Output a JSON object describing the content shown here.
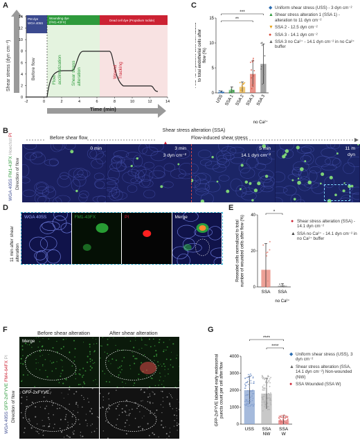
{
  "panels": {
    "A": "A",
    "B": "B",
    "C": "C",
    "D": "D",
    "E": "E",
    "F": "F",
    "G": "G"
  },
  "panelA": {
    "ylabel": "Shear stress (dyn cm⁻²)",
    "xlabel": "Time (min)",
    "band_pm": "PM dye\nWGA 405S",
    "band_wound": "Wounding dye\n(FM1-43FX)",
    "band_dead": "Dead cell dye (Propidium Iodide)",
    "phase_before": "Before flow",
    "phase_accl": "Flow acclimatization",
    "phase_ssa": "Shear stress alteration",
    "phase_wound": "Wound Tracking",
    "yticks": [
      "0",
      "2",
      "4",
      "6",
      "8",
      "10",
      "12",
      "14"
    ],
    "xticks": [
      "-2",
      "0",
      "2",
      "4",
      "6",
      "8",
      "10",
      "12",
      "14"
    ],
    "colors": {
      "pm": "#3b4a8f",
      "wound": "#2e9a3c",
      "dead": "#cc2233"
    }
  },
  "chart_data": [
    {
      "id": "C",
      "type": "bar",
      "ylabel": "FM1-43FX positive cells normalized to total endothelial cells after flow (%)",
      "ylim": [
        0,
        15
      ],
      "yticks": [
        "0",
        "5",
        "10",
        "15"
      ],
      "categories": [
        "USS",
        "SSA 1",
        "SSA 2",
        "SSA 3",
        "SSA 3"
      ],
      "sublabel": "no Ca²⁺",
      "values": [
        0.2,
        0.6,
        1.2,
        3.8,
        5.8
      ],
      "errors": [
        0.2,
        0.6,
        1.0,
        2.6,
        4.0
      ],
      "colors": [
        "#2b6cb0",
        "#2e9a3c",
        "#e6a21a",
        "#d94a3a",
        "#666666"
      ],
      "significance": [
        {
          "from": 0,
          "to": 3,
          "label": "**"
        },
        {
          "from": 0,
          "to": 4,
          "label": "***"
        }
      ],
      "legend": [
        {
          "symbol": "◆",
          "label": "Uniform shear stress (USS) - 3 dyn cm⁻²"
        },
        {
          "symbol": "▲",
          "label": "Shear stress alteration 1 (SSA 1) - alteration to 11 dyn cm⁻²"
        },
        {
          "symbol": "▼",
          "label": "SSA 2 - 12.5 dyn cm⁻²"
        },
        {
          "symbol": "●",
          "label": "SSA 3 - 14.1 dyn cm⁻²"
        },
        {
          "symbol": "▲",
          "label": "SSA 3 no Ca²⁺ - 14.1 dyn cm⁻² in no Ca²⁺ buffer"
        }
      ]
    },
    {
      "id": "E",
      "type": "bar",
      "ylabel": "Resealed cells normalized to total number of wounded cells after flow (%)",
      "ylim": [
        0,
        40
      ],
      "yticks": [
        "0",
        "20",
        "40"
      ],
      "categories": [
        "SSA",
        "SSA"
      ],
      "sublabel": "no Ca²⁺",
      "values": [
        9.5,
        0.6
      ],
      "errors": [
        14.5,
        1.2
      ],
      "colors": [
        "#e8897d",
        "#888888"
      ],
      "significance": [
        {
          "from": 0,
          "to": 1,
          "label": "*"
        }
      ],
      "legend": [
        {
          "symbol": "●",
          "label": "Shear stress alteration (SSA) - 14.1 dyn cm⁻²"
        },
        {
          "symbol": "▲",
          "label": "SSA no Ca²⁺ - 14.1 dyn cm⁻² in no Ca²⁺ buffer"
        }
      ]
    },
    {
      "id": "G",
      "type": "bar",
      "ylabel": "GFP-2xFYVE labelled early endosomal puncta count per cell after flow",
      "ylim": [
        0,
        4000
      ],
      "yticks": [
        "0",
        "1000",
        "2000",
        "3000",
        "4000"
      ],
      "categories": [
        "USS",
        "SSA NW",
        "SSA W"
      ],
      "values": [
        2000,
        1800,
        230
      ],
      "errors": [
        800,
        900,
        260
      ],
      "colors": [
        "#7f9ccd",
        "#b0b0b0",
        "#e27b7b"
      ],
      "significance": [
        {
          "from": 0,
          "to": 2,
          "label": "****"
        },
        {
          "from": 1,
          "to": 2,
          "label": "****"
        }
      ],
      "legend": [
        {
          "symbol": "◆",
          "label": "Uniform shear stress (USS), 3 dyn cm⁻²"
        },
        {
          "symbol": "▲",
          "label": "Shear stress alteration (SSA, 14.1 dyn cm⁻²) Non-wounded (NW)"
        },
        {
          "symbol": "●",
          "label": "SSA Wounded (SSA W)"
        }
      ]
    }
  ],
  "panelB": {
    "before": "Before shear flow",
    "ssa_title": "Shear stress alteration (SSA)",
    "flow_induced": "Flow-induced shear stress",
    "tiles": [
      {
        "time": "0 min",
        "stress": ""
      },
      {
        "time": "3 min",
        "stress": "3 dyn cm⁻²"
      },
      {
        "time": "5 min",
        "stress": "14.1 dyn cm⁻²"
      },
      {
        "time": "11 m",
        "stress": "dyn"
      }
    ],
    "side_wga": "WGA 405S",
    "side_fm": "FM1-43FX",
    "side_hoechst": "Hoechst",
    "side_pi": "PI",
    "side_dir": "Direction of flow"
  },
  "panelD": {
    "side": "11 min after shear alteration",
    "channels": [
      "WGA 405S",
      "FM1-43FX",
      "PI",
      "Merge"
    ]
  },
  "panelF": {
    "before": "Before shear alteration",
    "after": "After shear alteration",
    "merge": "Merge",
    "gfp": "GFP-2xFYVE",
    "side_wga": "WGA 405S",
    "side_gfp": "GFP-2xFYVE",
    "side_fm": "FM4-64FX",
    "side_pi": "PI",
    "side_dir": "Direction of flow"
  }
}
